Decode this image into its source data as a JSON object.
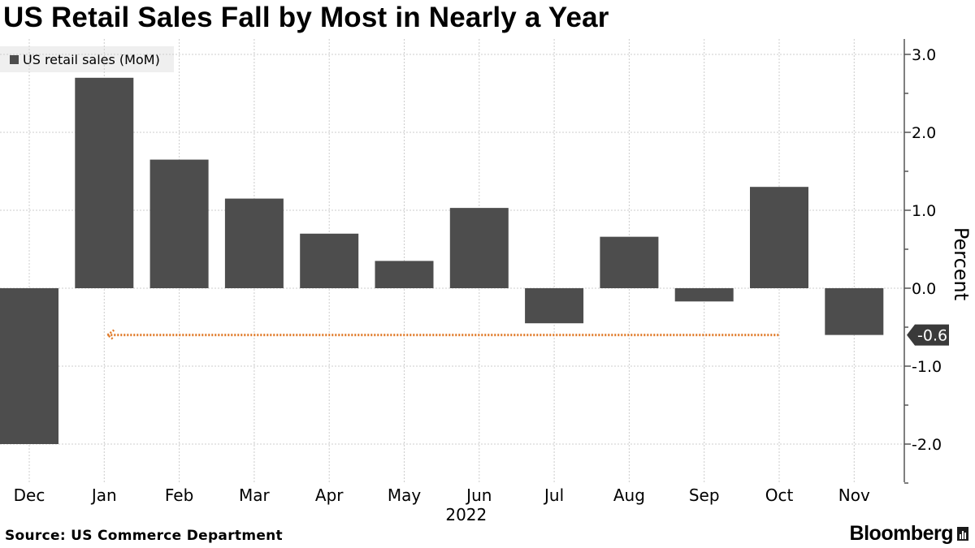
{
  "title": "US Retail Sales Fall by Most in Nearly a Year",
  "source": "Source: US Commerce Department",
  "brand": "Bloomberg",
  "colors": {
    "bar": "#4d4d4d",
    "annotation": "#e07b2a",
    "grid": "#cccccc",
    "tag": "#3a3a3a"
  },
  "chart_data": {
    "type": "bar",
    "title": "US Retail Sales Fall by Most in Nearly a Year",
    "categories": [
      "Dec",
      "Jan",
      "Feb",
      "Mar",
      "Apr",
      "May",
      "Jun",
      "Jul",
      "Aug",
      "Sep",
      "Oct",
      "Nov"
    ],
    "year_label": "2022",
    "series": [
      {
        "name": "US retail sales (MoM)",
        "values": [
          -2.0,
          2.7,
          1.65,
          1.15,
          0.7,
          0.35,
          1.03,
          -0.45,
          0.66,
          -0.17,
          1.3,
          -0.6
        ]
      }
    ],
    "ylabel": "Percent",
    "ylim": [
      -2.5,
      3.2
    ],
    "yticks": [
      3.0,
      2.0,
      1.0,
      0.0,
      -1.0,
      -2.0
    ],
    "ytick_labels": [
      "3.0",
      "2.0",
      "1.0",
      "0.0",
      "-1.0",
      "-2.0"
    ],
    "y_axis_side": "right",
    "grid": true,
    "legend": "top-left",
    "last_value_label": "-0.6",
    "annotation": {
      "type": "dotted-arrow",
      "y": -0.6,
      "from_category": "Oct",
      "to_category": "Jan"
    }
  }
}
